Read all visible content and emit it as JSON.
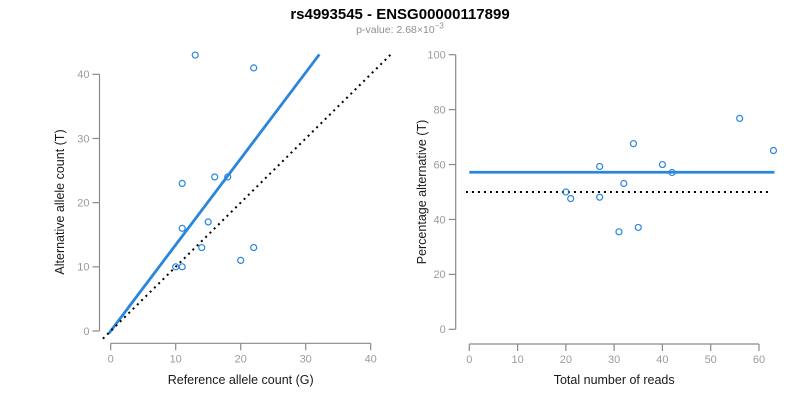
{
  "header": {
    "title": "rs4993545 - ENSG00000117899",
    "subtitle_base": "p-value: 2.68×10",
    "subtitle_exponent": "−3"
  },
  "colors": {
    "background": "#ffffff",
    "point_blue": "#2a85dd",
    "line_blue": "#2a85dd",
    "dotted_black": "#000000",
    "axis_line": "#8a8a8a",
    "tick_label": "#9b9b9b",
    "axis_title": "#1a1a1a",
    "title": "#000000",
    "subtitle": "#8f8f8f"
  },
  "chart_data": [
    {
      "id": "ref-vs-alt",
      "type": "scatter",
      "xlabel": "Reference allele count (G)",
      "ylabel": "Alternative allele count (T)",
      "xticks": [
        0,
        10,
        20,
        30,
        40
      ],
      "yticks": [
        0,
        10,
        20,
        30,
        40
      ],
      "xlim": [
        -1.7,
        44.7
      ],
      "ylim": [
        -1.7,
        44.7
      ],
      "grid": false,
      "legend": null,
      "points": [
        [
          10,
          10
        ],
        [
          11,
          10
        ],
        [
          11,
          16
        ],
        [
          11,
          23
        ],
        [
          13,
          43
        ],
        [
          14,
          13
        ],
        [
          15,
          17
        ],
        [
          16,
          24
        ],
        [
          18,
          24
        ],
        [
          20,
          11
        ],
        [
          22,
          13
        ],
        [
          22,
          41
        ]
      ],
      "lines": [
        {
          "name": "fit-line",
          "style": "solid",
          "color_key": "line_blue",
          "width": 2.8,
          "x1": -0.3,
          "y1": -0.4,
          "x2": 32.1,
          "y2": 43.1,
          "meaning": "regression through origin, slope ≈ 1.34"
        },
        {
          "name": "identity-line",
          "style": "dotted",
          "color_key": "dotted_black",
          "width": 2,
          "x1": -1.2,
          "y1": -1.2,
          "x2": 43.3,
          "y2": 43.3,
          "meaning": "y = x"
        }
      ]
    },
    {
      "id": "reads-vs-percentage",
      "type": "scatter",
      "xlabel": "Total number of reads",
      "ylabel": "Percentage alternative (T)",
      "xticks": [
        0,
        10,
        20,
        30,
        40,
        50,
        60
      ],
      "yticks": [
        0,
        20,
        40,
        60,
        80,
        100
      ],
      "xlim": [
        -2.5,
        65.5
      ],
      "ylim": [
        -4,
        104
      ],
      "grid": false,
      "legend": null,
      "points": [
        [
          20,
          50
        ],
        [
          21,
          47.6
        ],
        [
          27,
          48.1
        ],
        [
          27,
          59.3
        ],
        [
          31,
          35.5
        ],
        [
          32,
          53.1
        ],
        [
          34,
          67.6
        ],
        [
          35,
          37.1
        ],
        [
          40,
          60
        ],
        [
          42,
          57.1
        ],
        [
          56,
          76.8
        ],
        [
          63,
          65.1
        ]
      ],
      "lines": [
        {
          "name": "mean-percentage-line",
          "style": "solid",
          "color_key": "line_blue",
          "width": 2.8,
          "x1": 0,
          "y1": 57.2,
          "x2": 63.2,
          "y2": 57.2,
          "meaning": "overall alternative fraction ≈ 57.2%"
        },
        {
          "name": "expected-50-line",
          "style": "dotted",
          "color_key": "dotted_black",
          "width": 2,
          "x1": -0.7,
          "y1": 50,
          "x2": 62,
          "y2": 50,
          "meaning": "expected 50%"
        }
      ]
    }
  ]
}
